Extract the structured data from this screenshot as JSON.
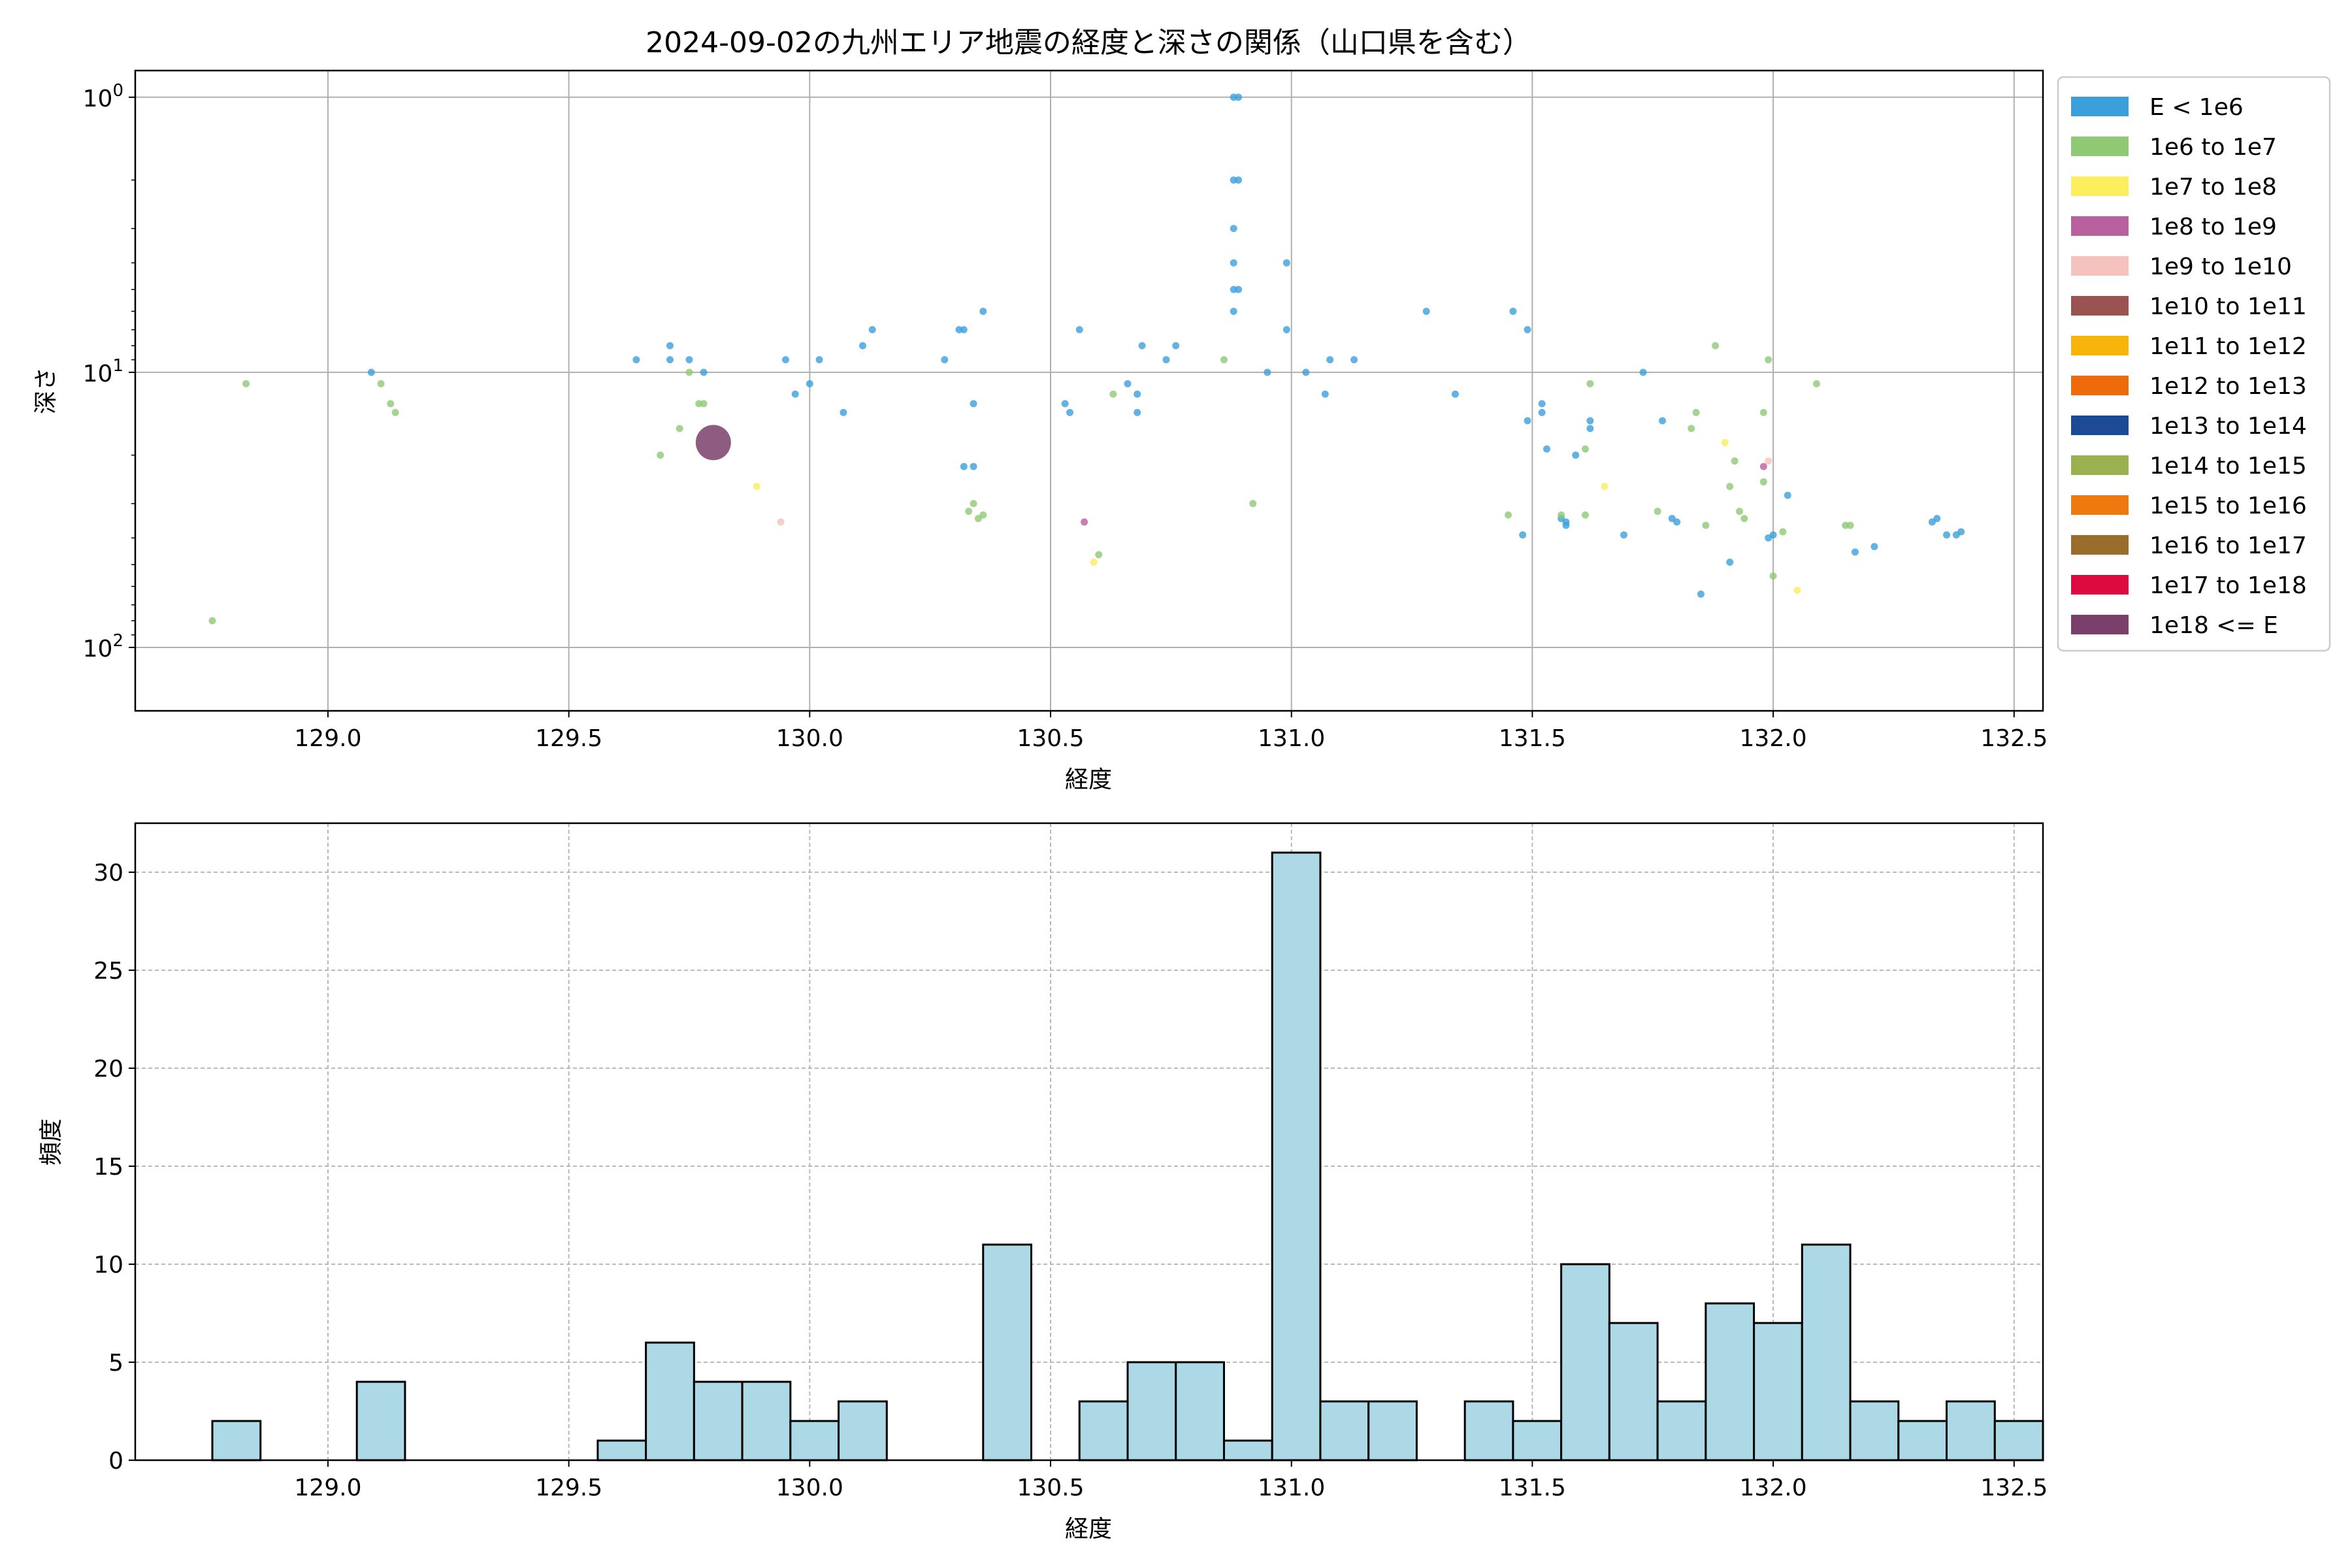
{
  "chart_data": [
    {
      "type": "scatter",
      "title": "2024-09-02の九州エリア地震の経度と深さの関係（山口県を含む）",
      "xlabel": "経度",
      "ylabel": "深さ",
      "xlim": [
        128.6,
        132.56
      ],
      "ylim": [
        170,
        0.8
      ],
      "y_scale": "log-inverted",
      "x_ticks": [
        "129.0",
        "129.5",
        "130.0",
        "130.5",
        "131.0",
        "131.5",
        "132.0",
        "132.5"
      ],
      "x_tick_values": [
        129.0,
        129.5,
        130.0,
        130.5,
        131.0,
        131.5,
        132.0,
        132.5
      ],
      "y_ticks": [
        {
          "value": 1,
          "base": "10",
          "exp": "0"
        },
        {
          "value": 10,
          "base": "10",
          "exp": "1"
        },
        {
          "value": 100,
          "base": "10",
          "exp": "2"
        }
      ],
      "grid": true,
      "legend": {
        "placement": "outside-right",
        "entries": [
          {
            "label": "E < 1e6",
            "color": "#3b9fdc"
          },
          {
            "label": "1e6 to 1e7",
            "color": "#8fc974"
          },
          {
            "label": "1e7 to 1e8",
            "color": "#fcee5c"
          },
          {
            "label": "1e8 to 1e9",
            "color": "#b8619e"
          },
          {
            "label": "1e9 to 1e10",
            "color": "#f5c2bd"
          },
          {
            "label": "1e10 to 1e11",
            "color": "#9b5351"
          },
          {
            "label": "1e11 to 1e12",
            "color": "#f7b50b"
          },
          {
            "label": "1e12 to 1e13",
            "color": "#ef6a08"
          },
          {
            "label": "1e13 to 1e14",
            "color": "#1c4a94"
          },
          {
            "label": "1e14 to 1e15",
            "color": "#9bb04e"
          },
          {
            "label": "1e15 to 1e16",
            "color": "#ee7a0f"
          },
          {
            "label": "1e16 to 1e17",
            "color": "#9a6d2c"
          },
          {
            "label": "1e17 to 1e18",
            "color": "#dd0a3f"
          },
          {
            "label": "1e18 <= E",
            "color": "#7a3f6a"
          }
        ]
      },
      "series": [
        {
          "name": "E < 1e6",
          "color": "#3b9fdc",
          "size": 1,
          "points": [
            [
              129.09,
              10
            ],
            [
              129.64,
              9
            ],
            [
              129.71,
              8
            ],
            [
              129.71,
              9
            ],
            [
              129.75,
              9
            ],
            [
              129.78,
              10
            ],
            [
              129.95,
              9
            ],
            [
              129.97,
              12
            ],
            [
              130.0,
              11
            ],
            [
              130.02,
              9
            ],
            [
              130.07,
              14
            ],
            [
              130.11,
              8
            ],
            [
              130.13,
              7
            ],
            [
              130.28,
              9
            ],
            [
              130.31,
              7
            ],
            [
              130.32,
              7
            ],
            [
              130.32,
              22
            ],
            [
              130.34,
              22
            ],
            [
              130.34,
              13
            ],
            [
              130.36,
              6
            ],
            [
              130.53,
              13
            ],
            [
              130.54,
              14
            ],
            [
              130.56,
              7
            ],
            [
              130.66,
              11
            ],
            [
              130.68,
              12
            ],
            [
              130.68,
              14
            ],
            [
              130.69,
              8
            ],
            [
              130.74,
              9
            ],
            [
              130.76,
              8
            ],
            [
              130.88,
              1
            ],
            [
              130.89,
              1
            ],
            [
              130.88,
              2
            ],
            [
              130.89,
              2
            ],
            [
              130.88,
              3
            ],
            [
              130.88,
              4
            ],
            [
              130.88,
              5
            ],
            [
              130.89,
              5
            ],
            [
              130.88,
              6
            ],
            [
              130.99,
              4
            ],
            [
              130.99,
              7
            ],
            [
              130.95,
              10
            ],
            [
              131.03,
              10
            ],
            [
              131.07,
              12
            ],
            [
              131.08,
              9
            ],
            [
              131.13,
              9
            ],
            [
              131.28,
              6
            ],
            [
              131.34,
              12
            ],
            [
              131.46,
              6
            ],
            [
              131.49,
              7
            ],
            [
              131.49,
              15
            ],
            [
              131.52,
              13
            ],
            [
              131.52,
              14
            ],
            [
              131.53,
              19
            ],
            [
              131.56,
              34
            ],
            [
              131.57,
              35
            ],
            [
              131.57,
              36
            ],
            [
              131.48,
              39
            ],
            [
              131.59,
              20
            ],
            [
              131.62,
              15
            ],
            [
              131.62,
              16
            ],
            [
              131.69,
              39
            ],
            [
              131.73,
              10
            ],
            [
              131.77,
              15
            ],
            [
              131.79,
              34
            ],
            [
              131.8,
              35
            ],
            [
              131.85,
              64
            ],
            [
              131.91,
              49
            ],
            [
              131.99,
              40
            ],
            [
              132.0,
              39
            ],
            [
              132.03,
              28
            ],
            [
              132.17,
              45
            ],
            [
              132.21,
              43
            ],
            [
              132.33,
              35
            ],
            [
              132.34,
              34
            ],
            [
              132.36,
              39
            ],
            [
              132.38,
              39
            ],
            [
              132.39,
              38
            ]
          ]
        },
        {
          "name": "1e6 to 1e7",
          "color": "#8fc974",
          "size": 1,
          "points": [
            [
              128.76,
              80
            ],
            [
              128.83,
              11
            ],
            [
              129.11,
              11
            ],
            [
              129.13,
              13
            ],
            [
              129.14,
              14
            ],
            [
              129.69,
              20
            ],
            [
              129.73,
              16
            ],
            [
              129.75,
              10
            ],
            [
              129.77,
              13
            ],
            [
              129.78,
              13
            ],
            [
              130.33,
              32
            ],
            [
              130.34,
              30
            ],
            [
              130.35,
              34
            ],
            [
              130.36,
              33
            ],
            [
              130.6,
              46
            ],
            [
              130.63,
              12
            ],
            [
              130.86,
              9
            ],
            [
              130.92,
              30
            ],
            [
              131.45,
              33
            ],
            [
              131.56,
              33
            ],
            [
              131.61,
              33
            ],
            [
              131.61,
              19
            ],
            [
              131.62,
              11
            ],
            [
              131.76,
              32
            ],
            [
              131.83,
              16
            ],
            [
              131.84,
              14
            ],
            [
              131.86,
              36
            ],
            [
              131.88,
              8
            ],
            [
              131.91,
              26
            ],
            [
              131.92,
              21
            ],
            [
              131.93,
              32
            ],
            [
              131.94,
              34
            ],
            [
              131.98,
              25
            ],
            [
              131.98,
              14
            ],
            [
              131.99,
              9
            ],
            [
              132.0,
              55
            ],
            [
              132.02,
              38
            ],
            [
              132.09,
              11
            ],
            [
              132.15,
              36
            ],
            [
              132.16,
              36
            ]
          ]
        },
        {
          "name": "1e7 to 1e8",
          "color": "#fcee5c",
          "size": 1,
          "points": [
            [
              129.89,
              26
            ],
            [
              130.59,
              49
            ],
            [
              131.65,
              26
            ],
            [
              131.9,
              18
            ],
            [
              132.05,
              62
            ]
          ]
        },
        {
          "name": "1e8 to 1e9",
          "color": "#b8619e",
          "size": 1,
          "points": [
            [
              130.57,
              35
            ],
            [
              131.98,
              22
            ]
          ]
        },
        {
          "name": "1e9 to 1e10",
          "color": "#f5c2bd",
          "size": 1,
          "points": [
            [
              129.94,
              35
            ],
            [
              131.99,
              21
            ]
          ]
        },
        {
          "name": "1e18 <= E",
          "color": "#7a3f6a",
          "size": 4,
          "points": [
            [
              129.8,
              18
            ]
          ]
        }
      ]
    },
    {
      "type": "bar",
      "title": "",
      "xlabel": "経度",
      "ylabel": "頻度",
      "xlim": [
        128.6,
        132.56
      ],
      "ylim": [
        0,
        32.5
      ],
      "x_ticks": [
        "129.0",
        "129.5",
        "130.0",
        "130.5",
        "131.0",
        "131.5",
        "132.0",
        "132.5"
      ],
      "x_tick_values": [
        129.0,
        129.5,
        130.0,
        130.5,
        131.0,
        131.5,
        132.0,
        132.5
      ],
      "y_ticks": [
        "0",
        "5",
        "10",
        "15",
        "20",
        "25",
        "30"
      ],
      "y_tick_values": [
        0,
        5,
        10,
        15,
        20,
        25,
        30
      ],
      "grid": true,
      "bar_color": "#add8e6",
      "bin_start": 128.76,
      "bin_width": 0.1,
      "values": [
        2,
        0,
        0,
        4,
        0,
        0,
        0,
        0,
        1,
        6,
        4,
        4,
        2,
        3,
        0,
        0,
        11,
        0,
        3,
        5,
        5,
        1,
        31,
        3,
        3,
        0,
        3,
        2,
        10,
        7,
        3,
        8,
        7,
        11,
        3,
        2,
        3,
        2
      ]
    }
  ]
}
